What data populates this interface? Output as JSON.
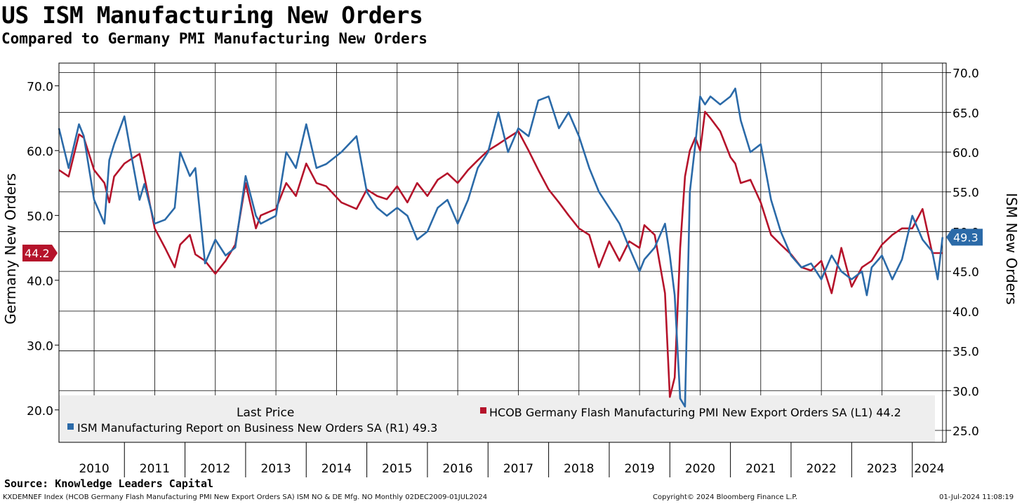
{
  "chart_data": {
    "type": "line",
    "title": "US ISM Manufacturing New Orders",
    "subtitle": "Compared to Germany PMI Manufacturing New Orders",
    "left_axis": {
      "label": "Germany New Orders",
      "range": [
        15.0,
        73.5
      ],
      "ticks": [
        20.0,
        30.0,
        40.0,
        50.0,
        60.0,
        70.0
      ],
      "tick_labels": [
        "20.0",
        "30.0",
        "40.0",
        "50.0",
        "60.0",
        "70.0"
      ]
    },
    "right_axis": {
      "label": "ISM New Orders",
      "range": [
        23.5,
        71.2
      ],
      "ticks": [
        25.0,
        30.0,
        35.0,
        40.0,
        45.0,
        50.0,
        55.0,
        60.0,
        65.0,
        70.0
      ],
      "tick_labels": [
        "25.0",
        "30.0",
        "35.0",
        "40.0",
        "45.0",
        "50.0",
        "55.0",
        "60.0",
        "65.0",
        "70.0"
      ]
    },
    "x_axis": {
      "range": [
        2009.92,
        2024.56
      ],
      "years": [
        "2010",
        "2011",
        "2012",
        "2013",
        "2014",
        "2015",
        "2016",
        "2017",
        "2018",
        "2019",
        "2020",
        "2021",
        "2022",
        "2023",
        "2024"
      ]
    },
    "series": [
      {
        "name": "HCOB Germany Flash Manufacturing PMI New Export Orders SA",
        "axis": "left",
        "color": "#b5132b",
        "last_value": "44.2",
        "legend": "HCOB Germany Flash Manufacturing PMI New Export Orders SA  (L1) 44.2",
        "x": [
          2009.92,
          2010.08,
          2010.25,
          2010.33,
          2010.5,
          2010.67,
          2010.75,
          2010.83,
          2011.0,
          2011.08,
          2011.25,
          2011.33,
          2011.5,
          2011.67,
          2011.83,
          2011.92,
          2012.08,
          2012.17,
          2012.33,
          2012.5,
          2012.67,
          2012.83,
          2013.0,
          2013.17,
          2013.25,
          2013.5,
          2013.67,
          2013.83,
          2014.0,
          2014.17,
          2014.33,
          2014.58,
          2014.83,
          2015.0,
          2015.17,
          2015.33,
          2015.5,
          2015.67,
          2015.83,
          2016.0,
          2016.17,
          2016.33,
          2016.5,
          2016.67,
          2016.83,
          2017.0,
          2017.17,
          2017.33,
          2017.5,
          2017.67,
          2017.83,
          2018.0,
          2018.17,
          2018.33,
          2018.5,
          2018.67,
          2018.83,
          2019.0,
          2019.17,
          2019.33,
          2019.5,
          2019.58,
          2019.75,
          2019.92,
          2020.0,
          2020.08,
          2020.17,
          2020.25,
          2020.33,
          2020.42,
          2020.5,
          2020.58,
          2020.67,
          2020.83,
          2021.0,
          2021.08,
          2021.17,
          2021.33,
          2021.5,
          2021.67,
          2021.83,
          2022.0,
          2022.17,
          2022.33,
          2022.5,
          2022.67,
          2022.83,
          2023.0,
          2023.17,
          2023.25,
          2023.33,
          2023.5,
          2023.67,
          2023.83,
          2024.0,
          2024.17,
          2024.33,
          2024.42,
          2024.5
        ],
        "values": [
          57,
          56,
          62.5,
          62,
          57,
          55,
          52,
          56,
          58,
          58.5,
          59.5,
          56,
          48,
          45,
          42,
          45.5,
          47,
          44,
          43,
          41,
          43,
          45.5,
          55,
          48,
          50,
          51,
          55,
          53,
          58,
          55,
          54.5,
          52,
          51,
          54,
          53,
          52.5,
          54.5,
          52,
          55,
          53,
          55.5,
          56.5,
          55,
          57,
          58.5,
          60,
          61,
          62,
          63,
          60,
          57,
          54,
          52,
          50,
          48,
          47,
          42,
          46,
          43,
          46,
          45,
          48.5,
          47,
          38,
          22,
          25,
          45,
          56,
          60,
          62,
          60,
          66,
          65,
          63,
          59,
          58,
          55,
          55.5,
          52,
          47,
          45.5,
          44,
          42,
          41.5,
          43,
          38,
          45,
          39,
          42,
          42.5,
          43,
          45.5,
          47,
          48,
          48,
          51,
          44.2,
          44.2,
          44.2
        ]
      },
      {
        "name": "ISM Manufacturing Report on Business New Orders SA",
        "axis": "right",
        "color": "#2b6aa8",
        "last_value": "49.3",
        "legend": "ISM Manufacturing Report on Business New Orders SA  (R1) 49.3",
        "x": [
          2009.92,
          2010.08,
          2010.25,
          2010.33,
          2010.5,
          2010.67,
          2010.75,
          2010.83,
          2011.0,
          2011.08,
          2011.25,
          2011.33,
          2011.5,
          2011.67,
          2011.83,
          2011.92,
          2012.08,
          2012.17,
          2012.33,
          2012.5,
          2012.67,
          2012.83,
          2013.0,
          2013.17,
          2013.25,
          2013.5,
          2013.67,
          2013.83,
          2014.0,
          2014.17,
          2014.33,
          2014.58,
          2014.83,
          2015.0,
          2015.17,
          2015.33,
          2015.5,
          2015.67,
          2015.83,
          2016.0,
          2016.17,
          2016.33,
          2016.5,
          2016.67,
          2016.83,
          2017.0,
          2017.17,
          2017.33,
          2017.5,
          2017.67,
          2017.83,
          2018.0,
          2018.17,
          2018.33,
          2018.5,
          2018.67,
          2018.83,
          2019.0,
          2019.17,
          2019.33,
          2019.5,
          2019.58,
          2019.75,
          2019.92,
          2020.0,
          2020.08,
          2020.17,
          2020.25,
          2020.33,
          2020.42,
          2020.5,
          2020.58,
          2020.67,
          2020.83,
          2021.0,
          2021.08,
          2021.17,
          2021.33,
          2021.5,
          2021.67,
          2021.83,
          2022.0,
          2022.17,
          2022.33,
          2022.5,
          2022.67,
          2022.83,
          2023.0,
          2023.17,
          2023.25,
          2023.33,
          2023.5,
          2023.67,
          2023.83,
          2024.0,
          2024.17,
          2024.33,
          2024.42,
          2024.5
        ],
        "values": [
          63,
          58,
          63.5,
          62,
          54,
          51,
          59,
          61,
          64.5,
          61,
          54,
          56,
          51,
          51.5,
          53,
          60,
          57,
          58,
          46,
          49,
          47,
          48,
          57,
          52,
          51,
          52,
          60,
          58,
          63.5,
          58,
          58.5,
          60,
          62,
          55,
          53,
          52,
          53,
          52,
          49,
          50,
          53,
          54,
          51,
          54,
          58,
          60,
          65,
          60,
          63,
          62,
          66.5,
          67,
          63,
          65,
          62,
          58,
          55,
          53,
          51,
          48,
          45,
          46.5,
          48,
          51,
          47,
          42,
          29,
          28,
          55,
          61,
          67,
          66,
          67,
          66,
          67,
          68,
          64,
          60,
          61,
          54,
          50,
          47,
          45.5,
          46,
          44,
          47,
          45,
          44,
          45,
          42,
          45.5,
          47,
          44,
          46.5,
          52,
          49,
          47.5,
          44,
          49.3
        ]
      }
    ],
    "legend": {
      "heading": "Last Price",
      "position": "bottom"
    }
  },
  "source": "Source: Knowledge Leaders Capital",
  "footer": {
    "index_info": "KXDEMNEF Index (HCOB Germany Flash Manufacturing PMI New Export Orders SA) ISM NO & DE Mfg. NO  Monthly 02DEC2009-01JUL2024",
    "copyright": "Copyright© 2024 Bloomberg Finance L.P.",
    "timestamp": "01-Jul-2024 11:08:19"
  }
}
